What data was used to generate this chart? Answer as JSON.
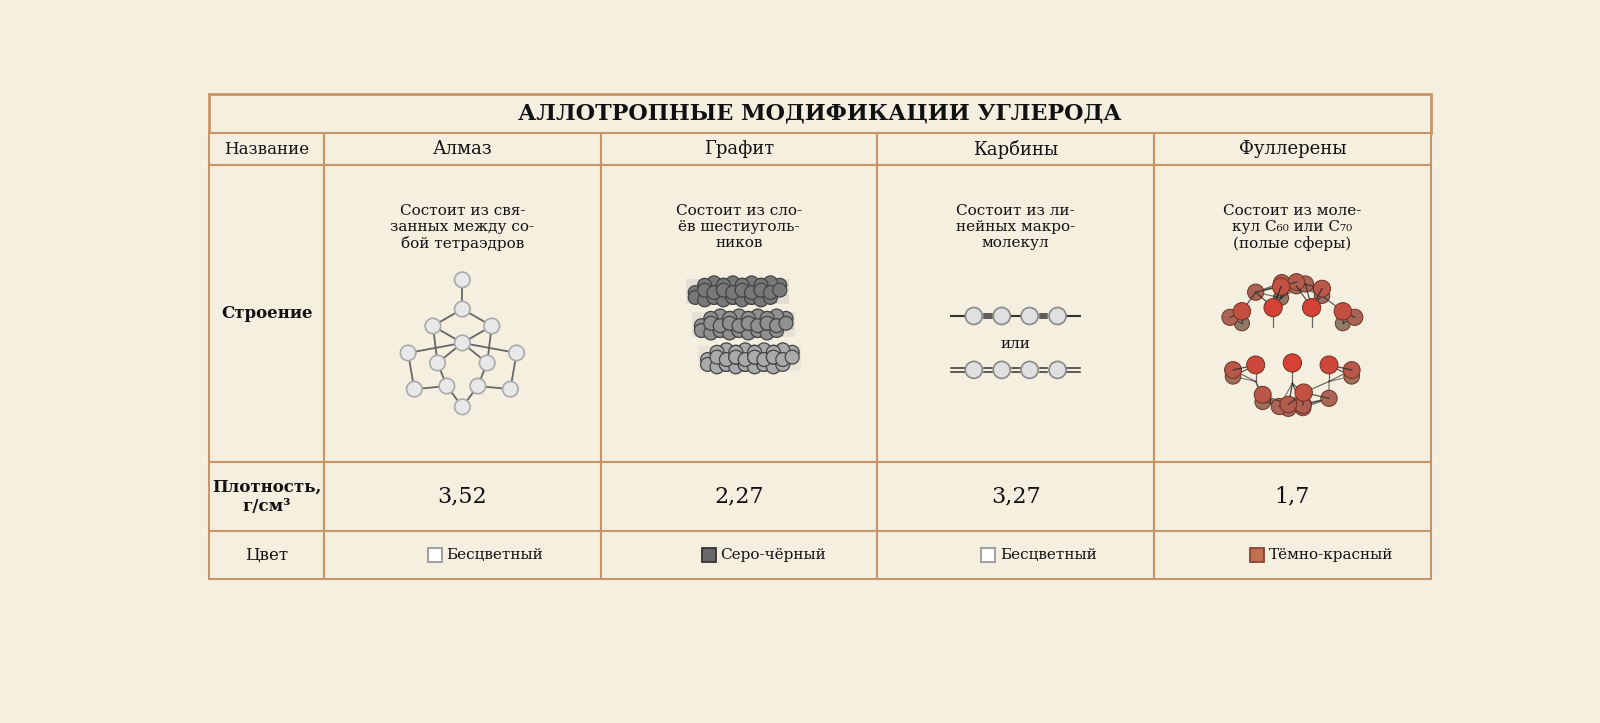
{
  "title": "АЛЛОТРОПНЫЕ МОДИФИКАЦИИ УГЛЕРОДА",
  "bg_color": "#f5efe0",
  "border_color": "#c8956a",
  "row_labels": [
    "Название",
    "Строение",
    "Плотность,\nг/см³",
    "Цвет"
  ],
  "col_headers": [
    "Алмаз",
    "Графит",
    "Карбины",
    "Фуллерены"
  ],
  "structure_texts": [
    "Состоит из свя-\nзанных между со-\nбой тетраэдров",
    "Состоит из сло-\nёв шестиуголь-\nников",
    "Состоит из ли-\nнейных макро-\nмолекул",
    "Состоит из моле-\nкул С₆₀ или С₇₀\n(полые сферы)"
  ],
  "density_values": [
    "3,52",
    "2,27",
    "3,27",
    "1,7"
  ],
  "color_labels": [
    "Бесцветный",
    "Серо-чёрный",
    "Бесцветный",
    "Тёмно-красный"
  ],
  "color_swatches": [
    "#ffffff",
    "#686868",
    "#ffffff",
    "#c07050"
  ],
  "swatch_border": [
    "#999999",
    "#333333",
    "#999999",
    "#904030"
  ],
  "title_fontsize": 16,
  "header_fontsize": 13,
  "body_fontsize": 11,
  "row_label_fontsize": 12,
  "density_fontsize": 16
}
